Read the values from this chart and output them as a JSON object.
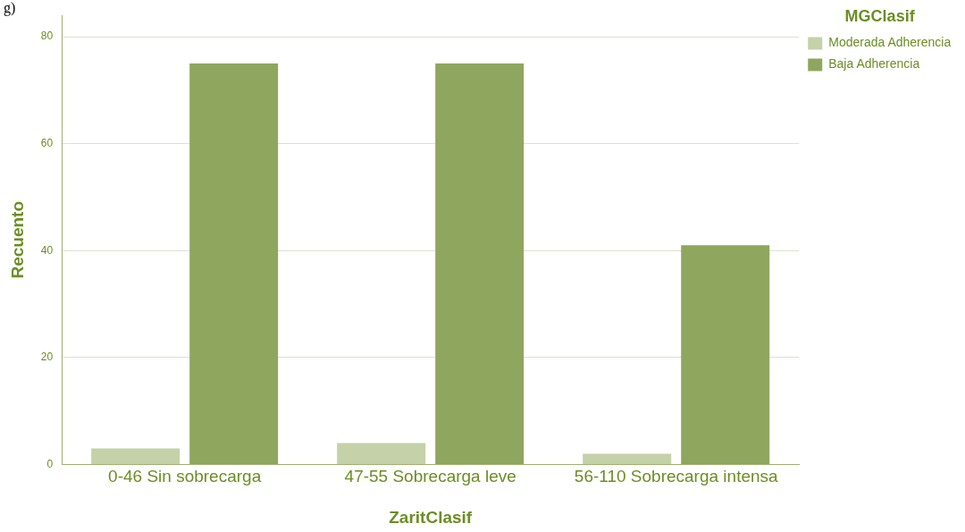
{
  "chart_data": {
    "type": "bar",
    "xlabel": "ZaritClasif",
    "ylabel": "Recuento",
    "legend_title": "MGClasif",
    "categories": [
      "0-46 Sin sobrecarga",
      "47-55 Sobrecarga leve",
      "56-110 Sobrecarga intensa"
    ],
    "series": [
      {
        "name": "Moderada Adherencia",
        "color": "#c5d1a8",
        "values": [
          3,
          4,
          2
        ]
      },
      {
        "name": "Baja Adherencia",
        "color": "#8fa65e",
        "values": [
          75,
          75,
          41
        ]
      }
    ],
    "ylim": [
      0,
      84
    ],
    "yticks": [
      0,
      20,
      40,
      60,
      80
    ],
    "grid": "y",
    "legend": "top right",
    "annotations": [
      "g)"
    ]
  }
}
